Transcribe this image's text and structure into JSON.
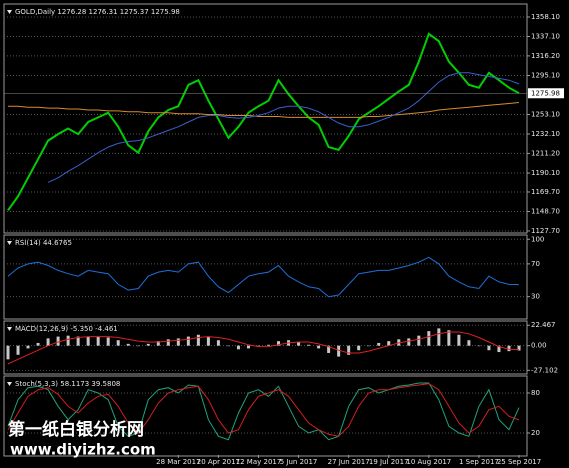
{
  "chart_data": [
    {
      "type": "line",
      "title": "GOLD,Daily 1276.28 1276.31 1275.37 1275.98",
      "last_price": 1275.98,
      "grid": true,
      "categories": [
        null,
        null,
        null,
        null,
        null,
        null,
        null,
        null,
        null,
        null,
        null,
        null,
        null,
        null,
        null,
        null,
        null,
        "28 Mar 2017",
        null,
        null,
        null,
        "20 Apr 2017",
        null,
        null,
        null,
        "12 May 2017",
        null,
        null,
        null,
        "5 Jun 2017",
        null,
        null,
        null,
        null,
        "27 Jun 2017",
        null,
        null,
        null,
        "19 Jul 2017",
        null,
        null,
        null,
        "10 Aug 2017",
        null,
        null,
        null,
        null,
        "1 Sep 2017",
        null,
        null,
        null,
        "25 Sep 2017"
      ],
      "series": [
        {
          "color": "#00d000",
          "values": [
            1150,
            1165,
            1185,
            1205,
            1225,
            1232,
            1238,
            1232,
            1245,
            1250,
            1255,
            1240,
            1220,
            1212,
            1235,
            1250,
            1258,
            1262,
            1285,
            1290,
            1268,
            1248,
            1228,
            1240,
            1255,
            1262,
            1268,
            1290,
            1275,
            1262,
            1250,
            1242,
            1218,
            1215,
            1230,
            1248,
            1255,
            1262,
            1270,
            1278,
            1285,
            1310,
            1340,
            1332,
            1310,
            1298,
            1285,
            1282,
            1298,
            1290,
            1282,
            1276
          ]
        },
        {
          "color": "#d98c2b",
          "values": [
            1262,
            1262,
            1261,
            1261,
            1260,
            1260,
            1259,
            1259,
            1258,
            1258,
            1257,
            1257,
            1256,
            1256,
            1255,
            1255,
            1255,
            1254,
            1254,
            1254,
            1253,
            1253,
            1252,
            1252,
            1252,
            1251,
            1251,
            1251,
            1250,
            1250,
            1250,
            1250,
            1250,
            1250,
            1250,
            1250,
            1251,
            1251,
            1252,
            1253,
            1254,
            1255,
            1256,
            1258,
            1259,
            1260,
            1261,
            1262,
            1263,
            1264,
            1265,
            1266
          ]
        },
        {
          "color": "#3a5fcd",
          "values": [
            null,
            null,
            null,
            null,
            1180,
            1185,
            1192,
            1198,
            1205,
            1212,
            1218,
            1222,
            1224,
            1225,
            1228,
            1232,
            1236,
            1240,
            1245,
            1250,
            1252,
            1252,
            1250,
            1249,
            1250,
            1252,
            1255,
            1260,
            1262,
            1262,
            1260,
            1256,
            1250,
            1244,
            1240,
            1240,
            1242,
            1246,
            1250,
            1255,
            1260,
            1268,
            1278,
            1288,
            1295,
            1298,
            1298,
            1296,
            1294,
            1292,
            1290,
            1286
          ]
        }
      ],
      "ylim": [
        1126.6,
        1371.0
      ],
      "yticks": [
        {
          "value": 1358.1,
          "label": "1358.10"
        },
        {
          "value": 1337.1,
          "label": "1337.10"
        },
        {
          "value": 1316.2,
          "label": "1316.20"
        },
        {
          "value": 1295.1,
          "label": "1295.10"
        },
        {
          "value": 1253.1,
          "label": "1253.10"
        },
        {
          "value": 1232.1,
          "label": "1232.10"
        },
        {
          "value": 1211.2,
          "label": "1211.20"
        },
        {
          "value": 1190.1,
          "label": "1190.10"
        },
        {
          "value": 1169.7,
          "label": "1169.70"
        },
        {
          "value": 1148.7,
          "label": "1148.70"
        },
        {
          "value": 1127.7,
          "label": "1127.70"
        }
      ]
    },
    {
      "type": "line",
      "title": "RSI(14) 44.6765",
      "grid": true,
      "series": [
        {
          "color": "#1e6fd9",
          "values": [
            55,
            65,
            70,
            72,
            68,
            62,
            58,
            55,
            62,
            60,
            58,
            45,
            38,
            40,
            55,
            60,
            62,
            60,
            70,
            72,
            55,
            42,
            35,
            45,
            55,
            58,
            60,
            68,
            55,
            48,
            42,
            40,
            30,
            32,
            45,
            58,
            60,
            62,
            62,
            65,
            68,
            72,
            78,
            70,
            55,
            48,
            42,
            40,
            55,
            48,
            45,
            44.68
          ]
        }
      ],
      "ylim": [
        4,
        104
      ],
      "yticks": [
        30,
        70,
        100
      ]
    },
    {
      "type": "bar",
      "title": "MACD(12,26,9) -5.350 -4.461",
      "grid": true,
      "series": [
        {
          "color": "#c8c8c8",
          "values": [
            -15,
            -10,
            -3,
            3,
            8,
            10,
            11,
            10,
            10,
            10,
            9,
            6,
            2,
            0,
            2,
            5,
            7,
            8,
            10,
            12,
            10,
            6,
            0,
            -4,
            -3,
            -1,
            1,
            5,
            6,
            4,
            1,
            -3,
            -8,
            -12,
            -10,
            -5,
            0,
            3,
            5,
            7,
            8,
            11,
            16,
            19,
            17,
            12,
            6,
            0,
            -5,
            -7,
            -6,
            -5.35
          ]
        },
        {
          "type": "line",
          "color": "#e02020",
          "values": [
            -20,
            -15,
            -10,
            -5,
            0,
            4,
            7,
            9,
            10,
            10,
            10,
            9,
            7,
            5,
            4,
            4,
            5,
            6,
            7,
            9,
            10,
            9,
            7,
            4,
            1,
            -1,
            -1,
            1,
            3,
            4,
            4,
            2,
            -1,
            -5,
            -8,
            -8,
            -6,
            -3,
            0,
            3,
            5,
            7,
            10,
            13,
            15,
            15,
            13,
            9,
            4,
            -1,
            -4,
            -4.461
          ]
        }
      ],
      "ylim": [
        -30,
        26
      ],
      "yticks": [
        22.467,
        {
          "value": 0,
          "label": "0.00"
        },
        -27.102
      ]
    },
    {
      "type": "line",
      "title": "Stoch(5,3,3) 58.1173 39.5808",
      "grid": true,
      "series": [
        {
          "color": "#1fa37a",
          "values": [
            30,
            70,
            88,
            90,
            85,
            60,
            40,
            55,
            85,
            80,
            70,
            30,
            15,
            20,
            70,
            85,
            88,
            80,
            92,
            90,
            40,
            15,
            10,
            50,
            80,
            85,
            75,
            90,
            60,
            30,
            20,
            25,
            10,
            15,
            60,
            85,
            88,
            80,
            85,
            90,
            92,
            95,
            95,
            70,
            30,
            20,
            15,
            60,
            85,
            40,
            25,
            58.1173
          ]
        },
        {
          "color": "#d02020",
          "values": [
            25,
            50,
            75,
            85,
            88,
            78,
            60,
            50,
            65,
            75,
            78,
            60,
            35,
            20,
            40,
            65,
            80,
            85,
            88,
            90,
            70,
            40,
            20,
            25,
            55,
            75,
            80,
            85,
            75,
            55,
            35,
            25,
            18,
            15,
            30,
            60,
            80,
            85,
            85,
            88,
            90,
            92,
            94,
            85,
            60,
            35,
            20,
            30,
            55,
            60,
            45,
            39.5808
          ]
        }
      ],
      "ylim": [
        -13,
        104
      ],
      "yticks": [
        20,
        80
      ]
    }
  ],
  "watermark": {
    "name": "第一纸白银分析网",
    "url": "www.diyizhz.com"
  }
}
